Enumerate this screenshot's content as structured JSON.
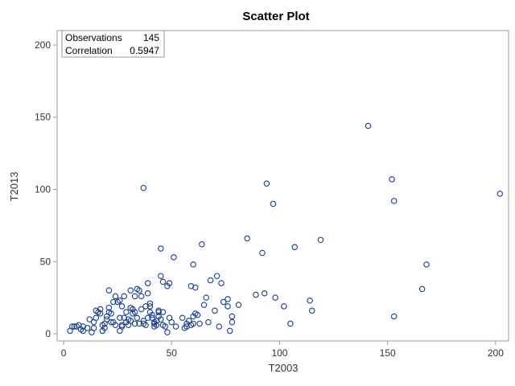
{
  "chart_data": {
    "type": "scatter",
    "title": "Scatter Plot",
    "xlabel": "T2003",
    "ylabel": "T2013",
    "xlim": [
      -3,
      206
    ],
    "ylim": [
      -5,
      210
    ],
    "xticks": [
      0,
      50,
      100,
      150,
      200
    ],
    "yticks": [
      0,
      50,
      100,
      150,
      200
    ],
    "xtick_labels": [
      "0",
      "50",
      "100",
      "150",
      "200"
    ],
    "ytick_labels": [
      "0",
      "50",
      "100",
      "150",
      "200"
    ],
    "grid": false,
    "legend": "none",
    "marker_color": "#1a3e8f",
    "stats": [
      {
        "label": "Observations",
        "value": "145"
      },
      {
        "label": "Correlation",
        "value": "0.5947"
      }
    ],
    "points": [
      [
        3,
        2
      ],
      [
        4,
        5
      ],
      [
        5,
        5
      ],
      [
        6,
        5
      ],
      [
        7,
        6
      ],
      [
        8,
        3
      ],
      [
        9,
        2
      ],
      [
        11,
        4
      ],
      [
        12,
        10
      ],
      [
        13,
        1
      ],
      [
        14,
        8
      ],
      [
        14,
        4
      ],
      [
        15,
        11
      ],
      [
        16,
        15
      ],
      [
        17,
        17
      ],
      [
        17,
        14
      ],
      [
        18,
        2
      ],
      [
        18,
        6
      ],
      [
        19,
        4
      ],
      [
        19,
        7
      ],
      [
        20,
        12
      ],
      [
        20,
        10
      ],
      [
        21,
        18
      ],
      [
        21,
        30
      ],
      [
        22,
        14
      ],
      [
        22,
        8
      ],
      [
        23,
        22
      ],
      [
        24,
        6
      ],
      [
        24,
        26
      ],
      [
        25,
        22
      ],
      [
        26,
        11
      ],
      [
        26,
        2
      ],
      [
        27,
        6
      ],
      [
        27,
        5
      ],
      [
        28,
        11
      ],
      [
        28,
        26
      ],
      [
        29,
        15
      ],
      [
        29,
        8
      ],
      [
        30,
        6
      ],
      [
        30,
        10
      ],
      [
        31,
        30
      ],
      [
        31,
        18
      ],
      [
        32,
        17
      ],
      [
        32,
        14
      ],
      [
        33,
        15
      ],
      [
        33,
        26
      ],
      [
        33,
        7
      ],
      [
        34,
        31
      ],
      [
        35,
        30
      ],
      [
        35,
        7
      ],
      [
        36,
        26
      ],
      [
        36,
        17
      ],
      [
        37,
        7
      ],
      [
        37,
        101
      ],
      [
        38,
        19
      ],
      [
        38,
        6
      ],
      [
        39,
        11
      ],
      [
        39,
        35
      ],
      [
        40,
        21
      ],
      [
        40,
        15
      ],
      [
        40,
        19
      ],
      [
        41,
        13
      ],
      [
        41,
        11
      ],
      [
        42,
        8
      ],
      [
        42,
        7
      ],
      [
        42,
        5
      ],
      [
        43,
        9
      ],
      [
        43,
        6
      ],
      [
        44,
        15
      ],
      [
        44,
        12
      ],
      [
        45,
        10
      ],
      [
        45,
        40
      ],
      [
        45,
        59
      ],
      [
        46,
        36
      ],
      [
        46,
        15
      ],
      [
        47,
        5
      ],
      [
        48,
        1
      ],
      [
        48,
        33
      ],
      [
        49,
        35
      ],
      [
        50,
        8
      ],
      [
        51,
        53
      ],
      [
        52,
        5
      ],
      [
        55,
        11
      ],
      [
        56,
        4
      ],
      [
        57,
        7
      ],
      [
        58,
        9
      ],
      [
        59,
        33
      ],
      [
        59,
        6
      ],
      [
        60,
        48
      ],
      [
        60,
        7
      ],
      [
        61,
        32
      ],
      [
        61,
        14
      ],
      [
        62,
        13
      ],
      [
        63,
        7
      ],
      [
        64,
        62
      ],
      [
        65,
        20
      ],
      [
        66,
        25
      ],
      [
        67,
        8
      ],
      [
        68,
        37
      ],
      [
        71,
        40
      ],
      [
        72,
        5
      ],
      [
        73,
        35
      ],
      [
        74,
        22
      ],
      [
        76,
        24
      ],
      [
        76,
        19
      ],
      [
        77,
        2
      ],
      [
        78,
        12
      ],
      [
        78,
        8
      ],
      [
        81,
        20
      ],
      [
        85,
        66
      ],
      [
        89,
        27
      ],
      [
        92,
        56
      ],
      [
        93,
        28
      ],
      [
        94,
        104
      ],
      [
        97,
        90
      ],
      [
        98,
        25
      ],
      [
        102,
        19
      ],
      [
        105,
        7
      ],
      [
        107,
        60
      ],
      [
        114,
        23
      ],
      [
        115,
        16
      ],
      [
        119,
        65
      ],
      [
        141,
        144
      ],
      [
        152,
        107
      ],
      [
        153,
        92
      ],
      [
        153,
        12
      ],
      [
        166,
        31
      ],
      [
        168,
        48
      ],
      [
        202,
        97
      ],
      [
        9,
        5
      ],
      [
        15,
        16
      ],
      [
        23,
        8
      ],
      [
        27,
        19
      ],
      [
        31,
        9
      ],
      [
        37,
        9
      ],
      [
        49,
        11
      ],
      [
        57,
        5
      ],
      [
        70,
        16
      ],
      [
        60,
        12
      ],
      [
        44,
        16
      ],
      [
        34,
        11
      ],
      [
        21,
        15
      ],
      [
        46,
        6
      ],
      [
        39,
        28
      ],
      [
        26,
        23
      ]
    ]
  }
}
